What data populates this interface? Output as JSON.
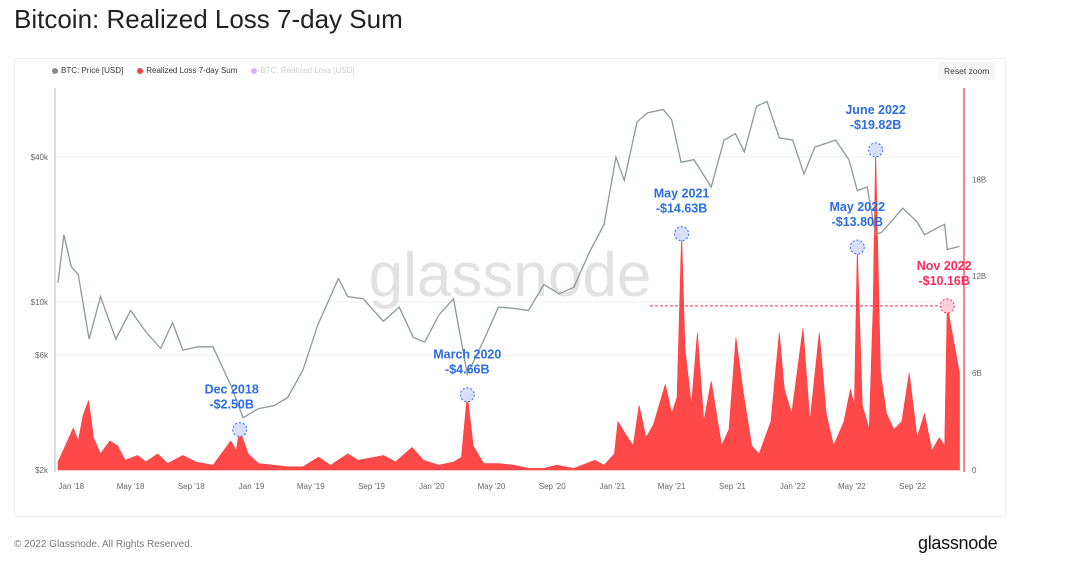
{
  "title": "Bitcoin: Realized Loss 7-day Sum",
  "legend": [
    {
      "label": "BTC: Price [USD]",
      "color": "#8a8a8a",
      "enabled": true
    },
    {
      "label": "Realized Loss 7-day Sum",
      "color": "#ff4444",
      "enabled": true
    },
    {
      "label": "BTC: Realized Loss [USD]",
      "color": "#b44dff",
      "enabled": false
    }
  ],
  "reset_zoom": "Reset zoom",
  "watermark": "glassnode",
  "footer": {
    "copyright": "© 2022 Glassnode. All Rights Reserved.",
    "logo": "glassnode"
  },
  "chart_data": {
    "type": "line+area",
    "xlabels": [
      "Jan '18",
      "May '18",
      "Sep '18",
      "Jan '19",
      "May '19",
      "Sep '19",
      "Jan '20",
      "May '20",
      "Sep '20",
      "Jan '21",
      "May '21",
      "Sep '21",
      "Jan '22",
      "May '22",
      "Sep '22"
    ],
    "xlabel_dates": [
      "2018-01-01",
      "2018-05-01",
      "2018-09-01",
      "2019-01-01",
      "2019-05-01",
      "2019-09-01",
      "2020-01-01",
      "2020-05-01",
      "2020-09-01",
      "2021-01-01",
      "2021-05-01",
      "2021-09-01",
      "2022-01-01",
      "2022-05-01",
      "2022-09-01"
    ],
    "xlim": [
      "2017-12-05",
      "2022-12-10"
    ],
    "left_axis": {
      "scale": "log",
      "ticks": [
        2000,
        6000,
        10000,
        40000
      ],
      "labels": [
        "$2k",
        "$6k",
        "$10k",
        "$40k"
      ]
    },
    "right_axis": {
      "scale": "linear",
      "unit": "B USD",
      "ticks": [
        0,
        6,
        12,
        18
      ],
      "labels": [
        "0",
        "6B",
        "12B",
        "18B"
      ]
    },
    "grid": "horizontal",
    "legend_position": "top-left",
    "series": [
      {
        "name": "BTC: Price [USD]",
        "color": "#8c9a94",
        "axis": "left",
        "type": "line",
        "points": [
          [
            "2017-12-05",
            12000
          ],
          [
            "2017-12-17",
            19000
          ],
          [
            "2018-01-01",
            14000
          ],
          [
            "2018-01-15",
            13000
          ],
          [
            "2018-02-06",
            7000
          ],
          [
            "2018-03-01",
            10500
          ],
          [
            "2018-04-01",
            7000
          ],
          [
            "2018-05-01",
            9200
          ],
          [
            "2018-06-01",
            7500
          ],
          [
            "2018-07-01",
            6400
          ],
          [
            "2018-07-25",
            8200
          ],
          [
            "2018-08-15",
            6300
          ],
          [
            "2018-09-15",
            6500
          ],
          [
            "2018-10-15",
            6500
          ],
          [
            "2018-11-20",
            4500
          ],
          [
            "2018-12-15",
            3300
          ],
          [
            "2019-01-15",
            3600
          ],
          [
            "2019-02-15",
            3700
          ],
          [
            "2019-03-15",
            4000
          ],
          [
            "2019-04-15",
            5200
          ],
          [
            "2019-05-15",
            8000
          ],
          [
            "2019-06-26",
            12500
          ],
          [
            "2019-07-15",
            10500
          ],
          [
            "2019-08-15",
            10300
          ],
          [
            "2019-09-25",
            8300
          ],
          [
            "2019-10-27",
            9500
          ],
          [
            "2019-11-25",
            7100
          ],
          [
            "2019-12-18",
            6800
          ],
          [
            "2020-01-15",
            8800
          ],
          [
            "2020-02-14",
            10300
          ],
          [
            "2020-03-13",
            5000
          ],
          [
            "2020-04-15",
            6900
          ],
          [
            "2020-05-15",
            9500
          ],
          [
            "2020-06-15",
            9400
          ],
          [
            "2020-07-15",
            9200
          ],
          [
            "2020-08-15",
            11800
          ],
          [
            "2020-09-15",
            10800
          ],
          [
            "2020-10-15",
            11500
          ],
          [
            "2020-11-15",
            16000
          ],
          [
            "2020-12-15",
            21000
          ],
          [
            "2021-01-08",
            40000
          ],
          [
            "2021-01-25",
            32000
          ],
          [
            "2021-02-20",
            56000
          ],
          [
            "2021-03-13",
            61000
          ],
          [
            "2021-04-14",
            63000
          ],
          [
            "2021-05-01",
            57000
          ],
          [
            "2021-05-20",
            38000
          ],
          [
            "2021-06-15",
            39000
          ],
          [
            "2021-07-20",
            30000
          ],
          [
            "2021-08-15",
            47000
          ],
          [
            "2021-09-07",
            50000
          ],
          [
            "2021-09-25",
            42000
          ],
          [
            "2021-10-20",
            65000
          ],
          [
            "2021-11-10",
            68000
          ],
          [
            "2021-12-05",
            48000
          ],
          [
            "2022-01-01",
            47000
          ],
          [
            "2022-01-24",
            34000
          ],
          [
            "2022-02-15",
            44000
          ],
          [
            "2022-03-29",
            47000
          ],
          [
            "2022-04-25",
            39000
          ],
          [
            "2022-05-12",
            29000
          ],
          [
            "2022-06-01",
            30000
          ],
          [
            "2022-06-18",
            19000
          ],
          [
            "2022-07-01",
            19500
          ],
          [
            "2022-08-12",
            24500
          ],
          [
            "2022-09-10",
            21500
          ],
          [
            "2022-09-25",
            19000
          ],
          [
            "2022-10-25",
            20500
          ],
          [
            "2022-11-05",
            21000
          ],
          [
            "2022-11-10",
            16500
          ],
          [
            "2022-12-05",
            17000
          ]
        ]
      },
      {
        "name": "Realized Loss 7-day Sum",
        "color": "#ff4444",
        "axis": "right",
        "type": "area",
        "points": [
          [
            "2017-12-05",
            0.5
          ],
          [
            "2017-12-20",
            1.5
          ],
          [
            "2018-01-05",
            2.6
          ],
          [
            "2018-01-15",
            1.8
          ],
          [
            "2018-01-25",
            3.4
          ],
          [
            "2018-02-05",
            4.3
          ],
          [
            "2018-02-15",
            2.0
          ],
          [
            "2018-03-01",
            1.0
          ],
          [
            "2018-03-20",
            1.8
          ],
          [
            "2018-04-05",
            1.5
          ],
          [
            "2018-04-20",
            0.6
          ],
          [
            "2018-05-15",
            0.9
          ],
          [
            "2018-06-01",
            0.5
          ],
          [
            "2018-06-25",
            1.0
          ],
          [
            "2018-07-15",
            0.4
          ],
          [
            "2018-08-15",
            0.9
          ],
          [
            "2018-09-10",
            0.5
          ],
          [
            "2018-10-15",
            0.3
          ],
          [
            "2018-11-20",
            1.8
          ],
          [
            "2018-12-01",
            1.2
          ],
          [
            "2018-12-08",
            2.5
          ],
          [
            "2018-12-25",
            1.0
          ],
          [
            "2019-01-15",
            0.4
          ],
          [
            "2019-02-15",
            0.3
          ],
          [
            "2019-03-15",
            0.2
          ],
          [
            "2019-04-15",
            0.2
          ],
          [
            "2019-05-17",
            0.8
          ],
          [
            "2019-06-10",
            0.3
          ],
          [
            "2019-07-15",
            1.0
          ],
          [
            "2019-08-05",
            0.6
          ],
          [
            "2019-09-25",
            0.9
          ],
          [
            "2019-10-20",
            0.5
          ],
          [
            "2019-11-22",
            1.4
          ],
          [
            "2019-12-15",
            0.6
          ],
          [
            "2020-01-15",
            0.3
          ],
          [
            "2020-02-15",
            0.5
          ],
          [
            "2020-03-01",
            0.8
          ],
          [
            "2020-03-13",
            4.66
          ],
          [
            "2020-03-25",
            1.5
          ],
          [
            "2020-04-15",
            0.4
          ],
          [
            "2020-05-15",
            0.4
          ],
          [
            "2020-06-15",
            0.3
          ],
          [
            "2020-07-15",
            0.1
          ],
          [
            "2020-08-15",
            0.1
          ],
          [
            "2020-09-10",
            0.3
          ],
          [
            "2020-10-15",
            0.1
          ],
          [
            "2020-11-26",
            0.6
          ],
          [
            "2020-12-15",
            0.3
          ],
          [
            "2021-01-05",
            1.0
          ],
          [
            "2021-01-12",
            3.0
          ],
          [
            "2021-01-28",
            2.2
          ],
          [
            "2021-02-12",
            1.5
          ],
          [
            "2021-02-24",
            4.0
          ],
          [
            "2021-03-10",
            2.0
          ],
          [
            "2021-03-25",
            2.8
          ],
          [
            "2021-04-18",
            5.3
          ],
          [
            "2021-05-01",
            3.5
          ],
          [
            "2021-05-12",
            4.5
          ],
          [
            "2021-05-21",
            14.63
          ],
          [
            "2021-05-28",
            7.5
          ],
          [
            "2021-06-10",
            4.0
          ],
          [
            "2021-06-22",
            8.5
          ],
          [
            "2021-07-05",
            3.0
          ],
          [
            "2021-07-20",
            5.5
          ],
          [
            "2021-08-10",
            1.5
          ],
          [
            "2021-08-25",
            2.5
          ],
          [
            "2021-09-08",
            8.2
          ],
          [
            "2021-09-22",
            5.0
          ],
          [
            "2021-10-10",
            1.5
          ],
          [
            "2021-10-25",
            1.0
          ],
          [
            "2021-11-18",
            3.0
          ],
          [
            "2021-12-05",
            8.5
          ],
          [
            "2021-12-15",
            5.0
          ],
          [
            "2021-12-30",
            3.5
          ],
          [
            "2022-01-10",
            6.0
          ],
          [
            "2022-01-22",
            8.8
          ],
          [
            "2022-02-05",
            3.0
          ],
          [
            "2022-02-24",
            8.5
          ],
          [
            "2022-03-10",
            3.5
          ],
          [
            "2022-03-25",
            1.5
          ],
          [
            "2022-04-15",
            3.0
          ],
          [
            "2022-04-28",
            5.0
          ],
          [
            "2022-05-06",
            4.0
          ],
          [
            "2022-05-12",
            13.8
          ],
          [
            "2022-05-22",
            4.0
          ],
          [
            "2022-06-05",
            2.5
          ],
          [
            "2022-06-13",
            10.0
          ],
          [
            "2022-06-18",
            19.82
          ],
          [
            "2022-06-28",
            6.0
          ],
          [
            "2022-07-10",
            3.5
          ],
          [
            "2022-07-25",
            2.5
          ],
          [
            "2022-08-10",
            3.0
          ],
          [
            "2022-08-25",
            6.0
          ],
          [
            "2022-09-10",
            2.0
          ],
          [
            "2022-09-25",
            3.5
          ],
          [
            "2022-10-10",
            1.2
          ],
          [
            "2022-10-25",
            2.0
          ],
          [
            "2022-11-05",
            1.5
          ],
          [
            "2022-11-10",
            10.16
          ],
          [
            "2022-11-20",
            8.5
          ],
          [
            "2022-12-05",
            6.0
          ]
        ]
      }
    ],
    "annotations": [
      {
        "label": "Dec 2018",
        "value": "-$2.50B",
        "date": "2018-12-08",
        "loss": 2.5,
        "color": "#2a6de6"
      },
      {
        "label": "March 2020",
        "value": "-$4.66B",
        "date": "2020-03-13",
        "loss": 4.66,
        "color": "#2a6de6"
      },
      {
        "label": "May 2021",
        "value": "-$14.63B",
        "date": "2021-05-21",
        "loss": 14.63,
        "color": "#2a6de6"
      },
      {
        "label": "May 2022",
        "value": "-$13.80B",
        "date": "2022-05-12",
        "loss": 13.8,
        "color": "#2a6de6"
      },
      {
        "label": "June 2022",
        "value": "-$19.82B",
        "date": "2022-06-18",
        "loss": 19.82,
        "color": "#2a6de6"
      },
      {
        "label": "Nov 2022",
        "value": "-$10.16B",
        "date": "2022-11-10",
        "loss": 10.16,
        "color": "#ff2a5f",
        "reference_line": true
      }
    ]
  }
}
